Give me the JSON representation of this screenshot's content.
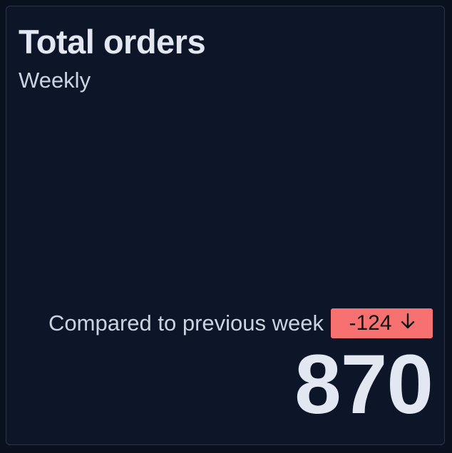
{
  "card": {
    "title": "Total orders",
    "subtitle": "Weekly",
    "comparison_label": "Compared to previous week",
    "delta": "-124",
    "delta_icon": "arrow-down-icon",
    "delta_color": "#f87171",
    "value": "870"
  }
}
